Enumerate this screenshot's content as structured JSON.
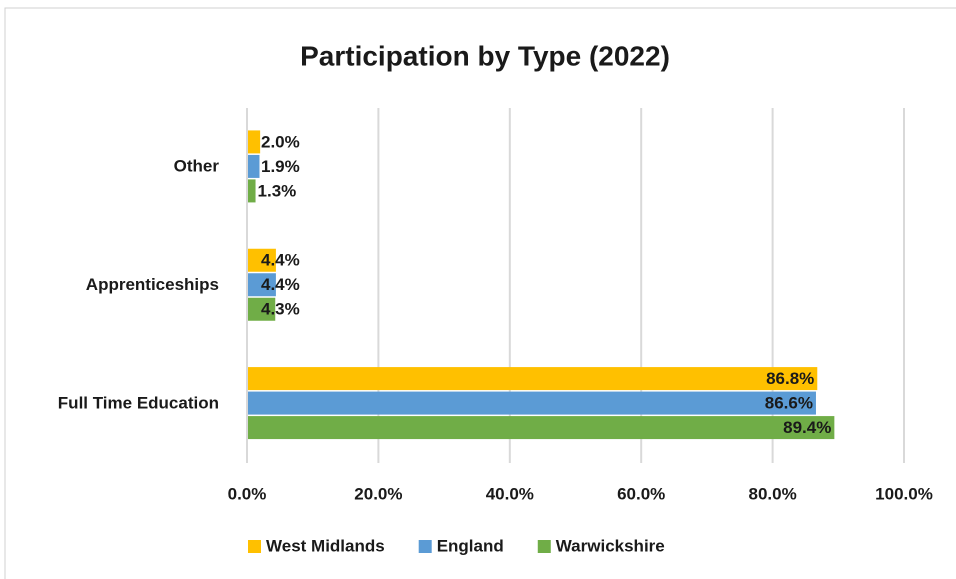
{
  "chart_data": {
    "type": "bar",
    "orientation": "horizontal",
    "title": "Participation by Type (2022)",
    "categories": [
      "Other",
      "Apprenticeships",
      "Full Time Education"
    ],
    "series": [
      {
        "name": "West Midlands",
        "color": "#FFC000",
        "values": [
          2.0,
          4.4,
          86.8
        ],
        "value_labels": [
          "2.0%",
          "4.4%",
          "86.8%"
        ]
      },
      {
        "name": "England",
        "color": "#5B9BD5",
        "values": [
          1.9,
          4.4,
          86.6
        ],
        "value_labels": [
          "1.9%",
          "4.4%",
          "86.6%"
        ]
      },
      {
        "name": "Warwickshire",
        "color": "#70AD47",
        "values": [
          1.3,
          4.3,
          89.4
        ],
        "value_labels": [
          "1.3%",
          "4.3%",
          "89.4%"
        ]
      }
    ],
    "xlim": [
      0,
      100
    ],
    "xticks": [
      {
        "value": 0,
        "label": "0.0%"
      },
      {
        "value": 20,
        "label": "20.0%"
      },
      {
        "value": 40,
        "label": "40.0%"
      },
      {
        "value": 60,
        "label": "60.0%"
      },
      {
        "value": 80,
        "label": "80.0%"
      },
      {
        "value": 100,
        "label": "100.0%"
      }
    ],
    "grid": true,
    "legend": "bottom"
  }
}
